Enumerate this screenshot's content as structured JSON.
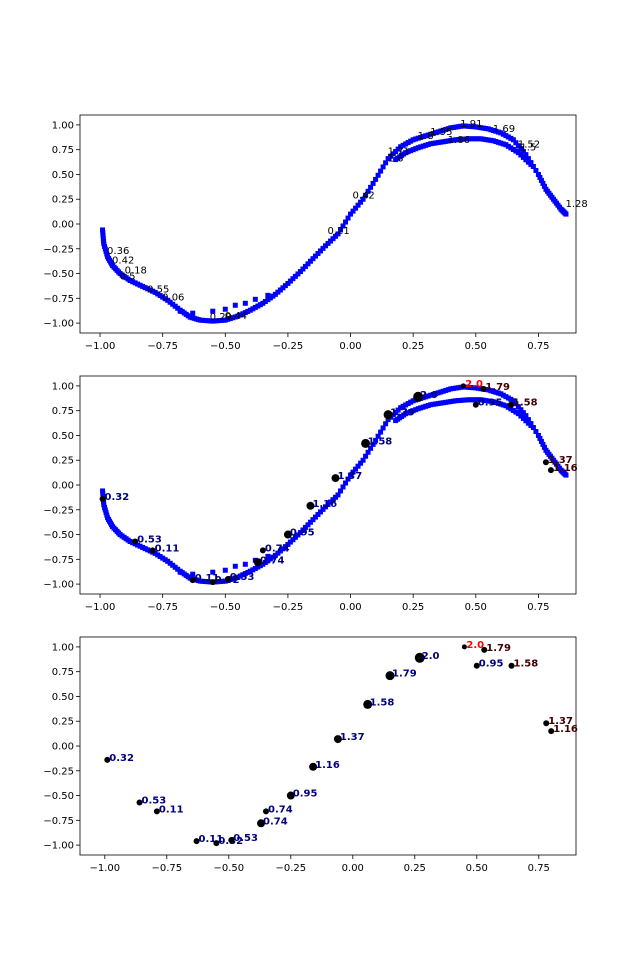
{
  "chart_data": [
    {
      "type": "scatter",
      "xlim": [
        -1.08,
        0.9
      ],
      "ylim": [
        -1.1,
        1.1
      ],
      "xticks": [
        -1.0,
        -0.75,
        -0.5,
        -0.25,
        0.0,
        0.25,
        0.5,
        0.75
      ],
      "xtick_labels": [
        "−1.00",
        "−0.75",
        "−0.50",
        "−0.25",
        "0.00",
        "0.25",
        "0.50",
        "0.75"
      ],
      "yticks": [
        -1.0,
        -0.75,
        -0.5,
        -0.25,
        0.0,
        0.25,
        0.5,
        0.75,
        1.0
      ],
      "ytick_labels": [
        "−1.00",
        "−0.75",
        "−0.50",
        "−0.25",
        "0.00",
        "0.25",
        "0.50",
        "0.75",
        "1.00"
      ],
      "trajectory_color": "#0000ff",
      "outer_arc": [
        [
          -0.99,
          -0.06
        ],
        [
          -0.985,
          -0.2
        ],
        [
          -0.97,
          -0.33
        ],
        [
          -0.95,
          -0.42
        ],
        [
          -0.92,
          -0.5
        ],
        [
          -0.88,
          -0.57
        ],
        [
          -0.83,
          -0.63
        ],
        [
          -0.78,
          -0.69
        ],
        [
          -0.73,
          -0.77
        ],
        [
          -0.68,
          -0.87
        ],
        [
          -0.64,
          -0.94
        ],
        [
          -0.6,
          -0.97
        ],
        [
          -0.55,
          -0.98
        ],
        [
          -0.5,
          -0.97
        ],
        [
          -0.45,
          -0.93
        ],
        [
          -0.4,
          -0.87
        ],
        [
          -0.35,
          -0.8
        ],
        [
          -0.3,
          -0.71
        ],
        [
          -0.25,
          -0.6
        ],
        [
          -0.2,
          -0.48
        ],
        [
          -0.15,
          -0.35
        ],
        [
          -0.1,
          -0.22
        ],
        [
          -0.05,
          -0.1
        ],
        [
          0.0,
          0.1
        ],
        [
          0.05,
          0.25
        ],
        [
          0.1,
          0.45
        ],
        [
          0.15,
          0.66
        ],
        [
          0.2,
          0.78
        ],
        [
          0.25,
          0.85
        ],
        [
          0.3,
          0.89
        ],
        [
          0.35,
          0.93
        ],
        [
          0.4,
          0.97
        ],
        [
          0.45,
          0.99
        ],
        [
          0.5,
          0.98
        ],
        [
          0.55,
          0.96
        ],
        [
          0.6,
          0.92
        ],
        [
          0.65,
          0.85
        ],
        [
          0.7,
          0.7
        ],
        [
          0.75,
          0.5
        ],
        [
          0.78,
          0.35
        ],
        [
          0.81,
          0.25
        ],
        [
          0.84,
          0.15
        ],
        [
          0.86,
          0.1
        ]
      ],
      "inner_arc": [
        [
          0.18,
          0.65
        ],
        [
          0.22,
          0.72
        ],
        [
          0.27,
          0.77
        ],
        [
          0.32,
          0.81
        ],
        [
          0.37,
          0.83
        ],
        [
          0.42,
          0.85
        ],
        [
          0.47,
          0.86
        ],
        [
          0.52,
          0.86
        ],
        [
          0.57,
          0.84
        ],
        [
          0.62,
          0.8
        ],
        [
          0.67,
          0.72
        ],
        [
          0.72,
          0.6
        ]
      ],
      "scatter_squares": [
        [
          -0.68,
          -0.88
        ],
        [
          -0.63,
          -0.9
        ],
        [
          -0.55,
          -0.88
        ],
        [
          -0.5,
          -0.86
        ],
        [
          -0.46,
          -0.82
        ],
        [
          -0.42,
          -0.8
        ],
        [
          -0.38,
          -0.76
        ],
        [
          -0.33,
          -0.72
        ]
      ],
      "labels": [
        {
          "t": "0.36",
          "x": -0.98,
          "y": -0.27,
          "c": "#000000"
        },
        {
          "t": "0.42",
          "x": -0.96,
          "y": -0.37,
          "c": "#000000"
        },
        {
          "t": "0.18",
          "x": -0.91,
          "y": -0.47,
          "c": "#000000"
        },
        {
          "t": "0.5",
          "x": -0.93,
          "y": -0.53,
          "c": "#000000"
        },
        {
          "t": "0.55",
          "x": -0.82,
          "y": -0.66,
          "c": "#000000"
        },
        {
          "t": "0.06",
          "x": -0.76,
          "y": -0.74,
          "c": "#000000"
        },
        {
          "t": "0.29",
          "x": -0.57,
          "y": -0.94,
          "c": "#000000"
        },
        {
          "t": "0.44",
          "x": -0.51,
          "y": -0.93,
          "c": "#000000"
        },
        {
          "t": "0.21",
          "x": -0.1,
          "y": -0.07,
          "c": "#000000"
        },
        {
          "t": "0.42",
          "x": 0.0,
          "y": 0.29,
          "c": "#000000"
        },
        {
          "t": "1.6",
          "x": 0.14,
          "y": 0.66,
          "c": "#000000"
        },
        {
          "t": "1.71",
          "x": 0.14,
          "y": 0.73,
          "c": "#000000"
        },
        {
          "t": "1.8",
          "x": 0.26,
          "y": 0.89,
          "c": "#000000"
        },
        {
          "t": "1.95",
          "x": 0.31,
          "y": 0.93,
          "c": "#000000"
        },
        {
          "t": "1.91",
          "x": 0.43,
          "y": 1.01,
          "c": "#000000"
        },
        {
          "t": "1.86",
          "x": 0.38,
          "y": 0.85,
          "c": "#000000"
        },
        {
          "t": "1.69",
          "x": 0.56,
          "y": 0.96,
          "c": "#000000"
        },
        {
          "t": "1.52",
          "x": 0.66,
          "y": 0.8,
          "c": "#000000"
        },
        {
          "t": "1.5",
          "x": 0.67,
          "y": 0.77,
          "c": "#000000"
        },
        {
          "t": "1.28",
          "x": 0.85,
          "y": 0.2,
          "c": "#000000"
        }
      ]
    },
    {
      "type": "scatter",
      "xlim": [
        -1.08,
        0.9
      ],
      "ylim": [
        -1.1,
        1.1
      ],
      "xticks": [
        -1.0,
        -0.75,
        -0.5,
        -0.25,
        0.0,
        0.25,
        0.5,
        0.75
      ],
      "xtick_labels": [
        "−1.00",
        "−0.75",
        "−0.50",
        "−0.25",
        "0.00",
        "0.25",
        "0.50",
        "0.75"
      ],
      "yticks": [
        -1.0,
        -0.75,
        -0.5,
        -0.25,
        0.0,
        0.25,
        0.5,
        0.75,
        1.0
      ],
      "ytick_labels": [
        "−1.00",
        "−0.75",
        "−0.50",
        "−0.25",
        "0.00",
        "0.25",
        "0.50",
        "0.75",
        "1.00"
      ],
      "points": [
        {
          "x": -0.99,
          "y": -0.14,
          "s": 3,
          "t": "0.32",
          "c": "#000080"
        },
        {
          "x": -0.86,
          "y": -0.57,
          "s": 3,
          "t": "0.53",
          "c": "#000080"
        },
        {
          "x": -0.79,
          "y": -0.66,
          "s": 3,
          "t": "0.11",
          "c": "#000080"
        },
        {
          "x": -0.63,
          "y": -0.96,
          "s": 3,
          "t": "0.11",
          "c": "#000080"
        },
        {
          "x": -0.55,
          "y": -0.98,
          "s": 3,
          "t": "0.32",
          "c": "#000080"
        },
        {
          "x": -0.49,
          "y": -0.95,
          "s": 3,
          "t": "0.53",
          "c": "#000080"
        },
        {
          "x": -0.37,
          "y": -0.78,
          "s": 4,
          "t": "0.74",
          "c": "#000080"
        },
        {
          "x": -0.35,
          "y": -0.66,
          "s": 3,
          "t": "0.74",
          "c": "#000080"
        },
        {
          "x": -0.25,
          "y": -0.5,
          "s": 4,
          "t": "0.95",
          "c": "#000080"
        },
        {
          "x": -0.16,
          "y": -0.21,
          "s": 4,
          "t": "1.16",
          "c": "#000080"
        },
        {
          "x": -0.06,
          "y": 0.07,
          "s": 4,
          "t": "1.37",
          "c": "#000080"
        },
        {
          "x": 0.06,
          "y": 0.42,
          "s": 4.5,
          "t": "1.58",
          "c": "#000080"
        },
        {
          "x": 0.15,
          "y": 0.71,
          "s": 4.5,
          "t": "1.79",
          "c": "#000080"
        },
        {
          "x": 0.27,
          "y": 0.89,
          "s": 5,
          "t": "2.0",
          "c": "#000080"
        },
        {
          "x": 0.45,
          "y": 1.0,
          "s": 2.5,
          "t": "2.0",
          "c": "#ff0000"
        },
        {
          "x": 0.53,
          "y": 0.97,
          "s": 3,
          "t": "1.79",
          "c": "#400000"
        },
        {
          "x": 0.5,
          "y": 0.81,
          "s": 3,
          "t": "0.95",
          "c": "#000080"
        },
        {
          "x": 0.64,
          "y": 0.81,
          "s": 3,
          "t": "1.58",
          "c": "#400000"
        },
        {
          "x": 0.78,
          "y": 0.23,
          "s": 3,
          "t": "1.37",
          "c": "#400000"
        },
        {
          "x": 0.8,
          "y": 0.15,
          "s": 3,
          "t": "1.16",
          "c": "#400000"
        }
      ]
    },
    {
      "type": "scatter",
      "xlim": [
        -1.1,
        0.9
      ],
      "ylim": [
        -1.1,
        1.1
      ],
      "xticks": [
        -1.0,
        -0.75,
        -0.5,
        -0.25,
        0.0,
        0.25,
        0.5,
        0.75
      ],
      "xtick_labels": [
        "−1.00",
        "−0.75",
        "−0.50",
        "−0.25",
        "0.00",
        "0.25",
        "0.50",
        "0.75"
      ],
      "yticks": [
        -1.0,
        -0.75,
        -0.5,
        -0.25,
        0.0,
        0.25,
        0.5,
        0.75,
        1.0
      ],
      "ytick_labels": [
        "−1.00",
        "−0.75",
        "−0.50",
        "−0.25",
        "0.00",
        "0.25",
        "0.50",
        "0.75",
        "1.00"
      ],
      "points": [
        {
          "x": -0.99,
          "y": -0.14,
          "s": 3,
          "t": "0.32",
          "c": "#000080"
        },
        {
          "x": -0.86,
          "y": -0.57,
          "s": 3,
          "t": "0.53",
          "c": "#000080"
        },
        {
          "x": -0.79,
          "y": -0.66,
          "s": 3,
          "t": "0.11",
          "c": "#000080"
        },
        {
          "x": -0.63,
          "y": -0.96,
          "s": 3,
          "t": "0.11",
          "c": "#000080"
        },
        {
          "x": -0.55,
          "y": -0.98,
          "s": 3,
          "t": "0.32",
          "c": "#000080"
        },
        {
          "x": -0.49,
          "y": -0.95,
          "s": 3,
          "t": "0.53",
          "c": "#000080"
        },
        {
          "x": -0.37,
          "y": -0.78,
          "s": 4,
          "t": "0.74",
          "c": "#000080"
        },
        {
          "x": -0.35,
          "y": -0.66,
          "s": 3,
          "t": "0.74",
          "c": "#000080"
        },
        {
          "x": -0.25,
          "y": -0.5,
          "s": 4,
          "t": "0.95",
          "c": "#000080"
        },
        {
          "x": -0.16,
          "y": -0.21,
          "s": 4,
          "t": "1.16",
          "c": "#000080"
        },
        {
          "x": -0.06,
          "y": 0.07,
          "s": 4,
          "t": "1.37",
          "c": "#000080"
        },
        {
          "x": 0.06,
          "y": 0.42,
          "s": 4.5,
          "t": "1.58",
          "c": "#000080"
        },
        {
          "x": 0.15,
          "y": 0.71,
          "s": 4.5,
          "t": "1.79",
          "c": "#000080"
        },
        {
          "x": 0.27,
          "y": 0.89,
          "s": 5,
          "t": "2.0",
          "c": "#000080"
        },
        {
          "x": 0.45,
          "y": 1.0,
          "s": 2.5,
          "t": "2.0",
          "c": "#ff0000"
        },
        {
          "x": 0.53,
          "y": 0.97,
          "s": 3,
          "t": "1.79",
          "c": "#400000"
        },
        {
          "x": 0.5,
          "y": 0.81,
          "s": 3,
          "t": "0.95",
          "c": "#000080"
        },
        {
          "x": 0.64,
          "y": 0.81,
          "s": 3,
          "t": "1.58",
          "c": "#400000"
        },
        {
          "x": 0.78,
          "y": 0.23,
          "s": 3,
          "t": "1.37",
          "c": "#400000"
        },
        {
          "x": 0.8,
          "y": 0.15,
          "s": 3,
          "t": "1.16",
          "c": "#400000"
        }
      ]
    }
  ]
}
